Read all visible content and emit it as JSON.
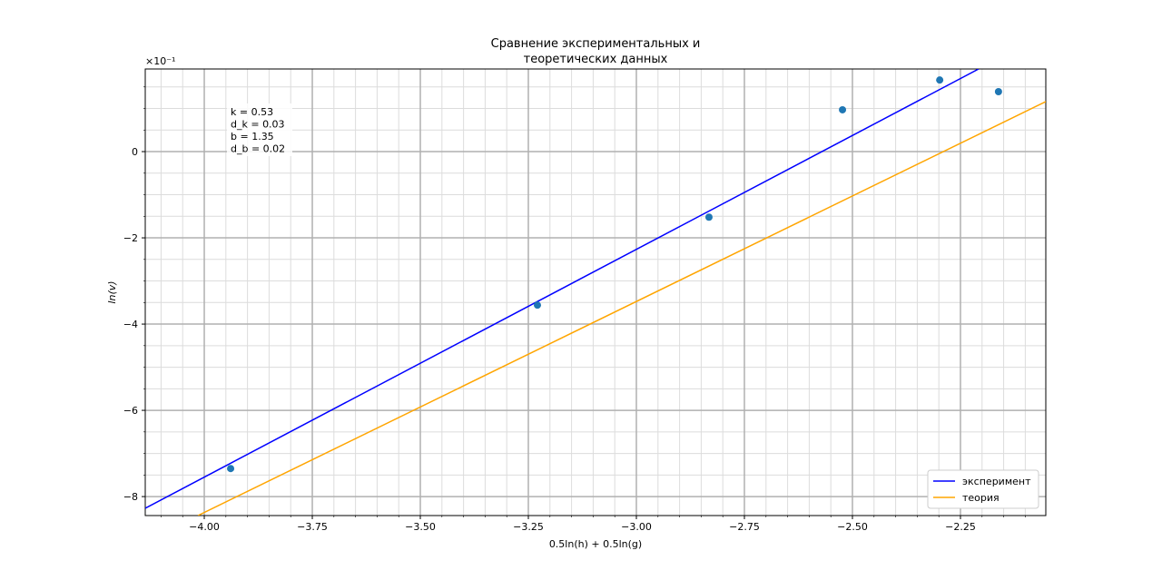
{
  "chart_data": {
    "type": "scatter",
    "title": "Сравнение экспериментальных и\nтеоретических данных",
    "x_label": "0.5ln(h) + 0.5ln(g)",
    "y_label": "ln(v)",
    "y_offset_label": "×10⁻¹",
    "annotation": [
      "k = 0.53",
      "d_k = 0.03",
      "b = 1.35",
      "d_b = 0.02"
    ],
    "xlim": [
      -4.1366,
      -2.0525
    ],
    "ylim": [
      -8.44,
      1.916
    ],
    "xticks": [
      {
        "value": -4.0,
        "label": "−4.00"
      },
      {
        "value": -3.75,
        "label": "−3.75"
      },
      {
        "value": -3.5,
        "label": "−3.50"
      },
      {
        "value": -3.25,
        "label": "−3.25"
      },
      {
        "value": -3.0,
        "label": "−3.00"
      },
      {
        "value": -2.75,
        "label": "−2.75"
      },
      {
        "value": -2.5,
        "label": "−2.50"
      },
      {
        "value": -2.25,
        "label": "−2.25"
      }
    ],
    "yticks": [
      {
        "value": -8,
        "label": "−8"
      },
      {
        "value": -6,
        "label": "−6"
      },
      {
        "value": -4,
        "label": "−4"
      },
      {
        "value": -2,
        "label": "−2"
      },
      0
    ],
    "xminorticks": [
      -4.1,
      -4.05,
      -3.95,
      -3.9,
      -3.85,
      -3.8,
      -3.7,
      -3.65,
      -3.6,
      -3.55,
      -3.45,
      -3.4,
      -3.35,
      -3.3,
      -3.2,
      -3.15,
      -3.1,
      -3.05,
      -2.95,
      -2.9,
      -2.85,
      -2.8,
      -2.7,
      -2.65,
      -2.6,
      -2.55,
      -2.45,
      -2.4,
      -2.35,
      -2.3,
      -2.2,
      -2.15,
      -2.1
    ],
    "yminorticks": [
      1.5,
      1,
      0.5,
      -0.5,
      -1,
      -1.5,
      -2.5,
      -3,
      -3.5,
      -4.5,
      -5,
      -5.5,
      -6.5,
      -7,
      -7.5
    ],
    "grid": true,
    "minor_grid": true,
    "legend": "lower right",
    "points": {
      "color": "#1f77b4",
      "x": [
        -3.939,
        -3.229,
        -2.832,
        -2.523,
        -2.298,
        -2.162
      ],
      "values": [
        -7.35,
        -3.56,
        -1.52,
        0.97,
        1.66,
        1.39
      ]
    },
    "series": [
      {
        "name": "эксперимент",
        "color": "#0000ff",
        "x": [
          -4.1366,
          -2.208
        ],
        "values": [
          -8.27,
          1.916
        ]
      },
      {
        "name": "теория",
        "color": "#ffa500",
        "x": [
          -4.0147,
          -2.0525
        ],
        "values": [
          -8.44,
          1.16
        ]
      }
    ]
  }
}
